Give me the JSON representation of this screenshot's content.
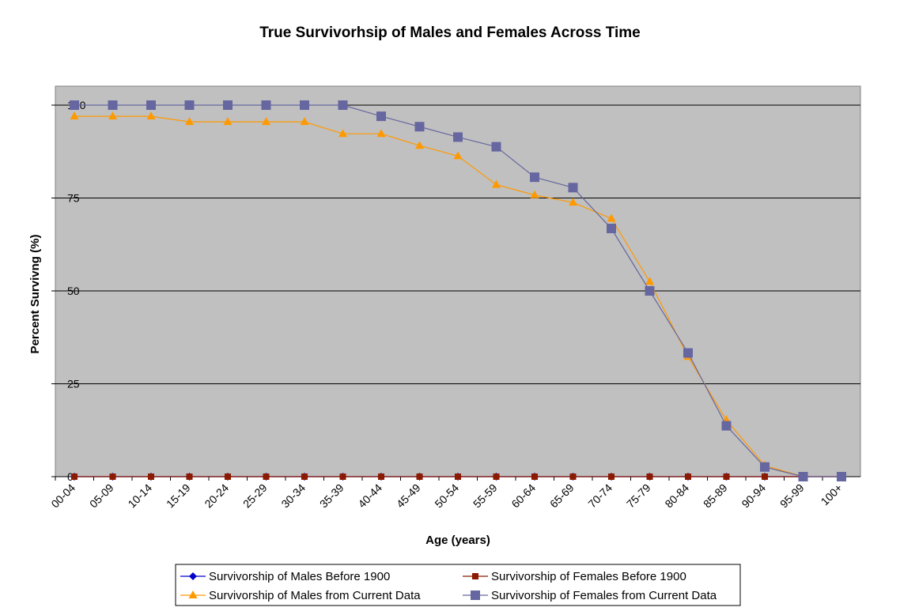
{
  "chart_data": {
    "type": "line",
    "title": "True Survivorhsip of Males and Females Across Time",
    "xlabel": "Age (years)",
    "ylabel": "Percent Survivng (%)",
    "categories": [
      "00-04",
      "05-09",
      "10-14",
      "15-19",
      "20-24",
      "25-29",
      "30-34",
      "35-39",
      "40-44",
      "45-49",
      "50-54",
      "55-59",
      "60-64",
      "65-69",
      "70-74",
      "75-79",
      "80-84",
      "85-89",
      "90-94",
      "95-99",
      "100+"
    ],
    "ylim": [
      0,
      100
    ],
    "yticks": [
      "0",
      "25",
      "50",
      "75",
      "100"
    ],
    "grid": true,
    "legend_position": "bottom",
    "plot_background": "#c0c0c0",
    "series": [
      {
        "name": "Survivorship of Males Before 1900",
        "color": "#0000cc",
        "marker": "diamond",
        "values": [
          0,
          0,
          0,
          0,
          0,
          0,
          0,
          0,
          0,
          0,
          0,
          0,
          0,
          0,
          0,
          0,
          0,
          0,
          0,
          0,
          0
        ]
      },
      {
        "name": "Survivorship of Females Before 1900",
        "color": "#8b1a00",
        "marker": "square-small",
        "values": [
          0,
          0,
          0,
          0,
          0,
          0,
          0,
          0,
          0,
          0,
          0,
          0,
          0,
          0,
          0,
          0,
          0,
          0,
          0,
          0,
          0
        ]
      },
      {
        "name": "Survivorship of Males from Current Data",
        "color": "#ff9900",
        "marker": "triangle",
        "values": [
          97,
          97,
          97,
          95.5,
          95.5,
          95.5,
          95.5,
          92.3,
          92.3,
          89.1,
          86.3,
          78.6,
          75.8,
          73.8,
          69.5,
          52.5,
          32.3,
          15.2,
          3.0,
          0,
          0
        ]
      },
      {
        "name": "Survivorship of Females from Current Data",
        "color": "#6666a0",
        "marker": "square",
        "values": [
          100,
          100,
          100,
          100,
          100,
          100,
          100,
          100,
          97,
          94.2,
          91.4,
          88.8,
          80.6,
          77.8,
          66.8,
          50,
          33.3,
          13.7,
          2.6,
          0,
          0
        ]
      }
    ]
  }
}
